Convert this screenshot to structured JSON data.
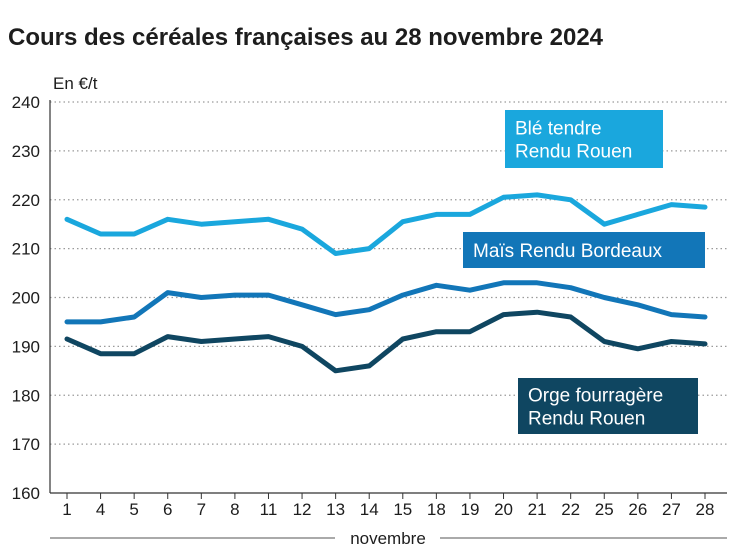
{
  "chart_data": {
    "type": "line",
    "title": "Cours des céréales françaises au 28 novembre 2024",
    "ylabel": "En €/t",
    "xlabel": "novembre",
    "ylim": [
      160,
      240
    ],
    "yticks": [
      160,
      170,
      180,
      190,
      200,
      210,
      220,
      230,
      240
    ],
    "grid": true,
    "categories": [
      "1",
      "4",
      "5",
      "6",
      "7",
      "8",
      "11",
      "12",
      "13",
      "14",
      "15",
      "18",
      "19",
      "20",
      "21",
      "22",
      "25",
      "26",
      "27",
      "28"
    ],
    "series": [
      {
        "name": "Blé tendre Rendu Rouen",
        "label_lines": [
          "Blé tendre",
          "Rendu Rouen"
        ],
        "color": "#1aa7dd",
        "values": [
          216,
          213,
          213,
          216,
          215,
          215.5,
          216,
          214,
          209,
          210,
          215.5,
          217,
          217,
          220.5,
          221,
          220,
          215,
          217,
          219,
          218.5
        ]
      },
      {
        "name": "Maïs Rendu Bordeaux",
        "label_lines": [
          "Maïs Rendu Bordeaux"
        ],
        "color": "#1276b8",
        "values": [
          195,
          195,
          196,
          201,
          200,
          200.5,
          200.5,
          198.5,
          196.5,
          197.5,
          200.5,
          202.5,
          201.5,
          203,
          203,
          202,
          200,
          198.5,
          196.5,
          196
        ]
      },
      {
        "name": "Orge fourragère Rendu Rouen",
        "label_lines": [
          "Orge fourragère",
          "Rendu Rouen"
        ],
        "color": "#0f4661",
        "values": [
          191.5,
          188.5,
          188.5,
          192,
          191,
          191.5,
          192,
          190,
          185,
          186,
          191.5,
          193,
          193,
          196.5,
          197,
          196,
          191,
          189.5,
          191,
          190.5
        ]
      }
    ]
  }
}
